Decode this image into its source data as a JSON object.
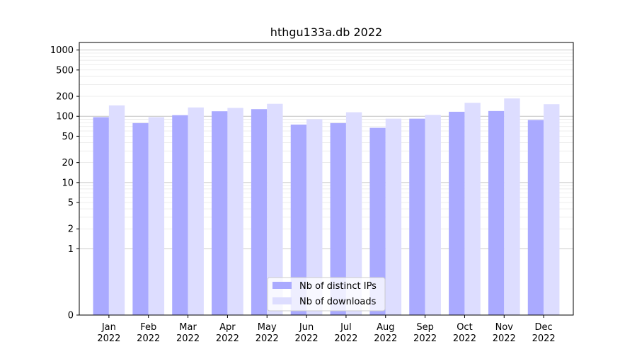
{
  "chart_data": {
    "type": "bar",
    "title": "hthgu133a.db 2022",
    "xlabel": "",
    "ylabel": "",
    "yscale": "symlog",
    "ylim": [
      0,
      1300
    ],
    "categories": [
      [
        "Jan",
        "2022"
      ],
      [
        "Feb",
        "2022"
      ],
      [
        "Mar",
        "2022"
      ],
      [
        "Apr",
        "2022"
      ],
      [
        "May",
        "2022"
      ],
      [
        "Jun",
        "2022"
      ],
      [
        "Jul",
        "2022"
      ],
      [
        "Aug",
        "2022"
      ],
      [
        "Sep",
        "2022"
      ],
      [
        "Oct",
        "2022"
      ],
      [
        "Nov",
        "2022"
      ],
      [
        "Dec",
        "2022"
      ]
    ],
    "yticks": [
      {
        "value": 0,
        "label": "0"
      },
      {
        "value": 1,
        "label": "1"
      },
      {
        "value": 2,
        "label": "2"
      },
      {
        "value": 5,
        "label": "5"
      },
      {
        "value": 10,
        "label": "10"
      },
      {
        "value": 20,
        "label": "20"
      },
      {
        "value": 50,
        "label": "50"
      },
      {
        "value": 100,
        "label": "100"
      },
      {
        "value": 200,
        "label": "200"
      },
      {
        "value": 500,
        "label": "500"
      },
      {
        "value": 1000,
        "label": "1000"
      }
    ],
    "series": [
      {
        "name": "Nb of distinct IPs",
        "color": "#aaaaff",
        "values": [
          97,
          79,
          104,
          119,
          128,
          75,
          79,
          67,
          92,
          117,
          120,
          88
        ]
      },
      {
        "name": "Nb of downloads",
        "color": "#ddddff",
        "values": [
          146,
          97,
          136,
          134,
          154,
          90,
          115,
          92,
          105,
          160,
          186,
          152
        ]
      }
    ],
    "legend_position": "lower center",
    "grid": true
  }
}
